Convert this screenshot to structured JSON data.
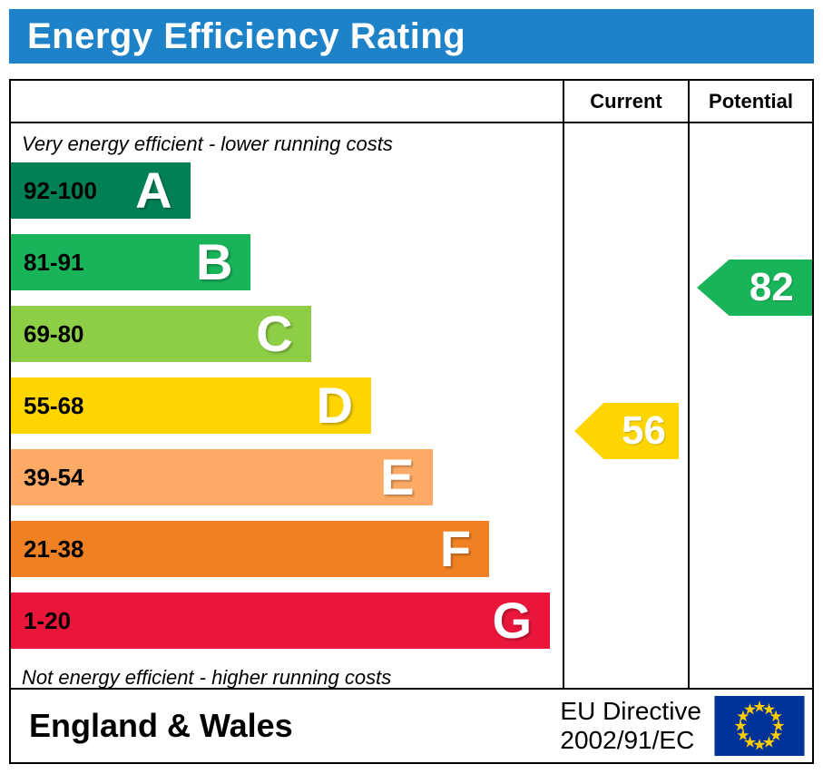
{
  "theme": {
    "banner_blue": "#1e82c8",
    "border_color": "#000000"
  },
  "header": {
    "title": "Energy Efficiency Rating"
  },
  "table": {
    "current_label": "Current",
    "potential_label": "Potential"
  },
  "chart_data": {
    "type": "bar",
    "title": "Energy Efficiency Rating",
    "top_note": "Very energy efficient - lower running costs",
    "bottom_note": "Not energy efficient - higher running costs",
    "categories": [
      "A",
      "B",
      "C",
      "D",
      "E",
      "F",
      "G"
    ],
    "bands": [
      {
        "letter": "A",
        "range": "92-100",
        "min": 92,
        "max": 100,
        "color": "#008054",
        "width_pct": 32.5
      },
      {
        "letter": "B",
        "range": "81-91",
        "min": 81,
        "max": 91,
        "color": "#19b459",
        "width_pct": 43.5
      },
      {
        "letter": "C",
        "range": "69-80",
        "min": 69,
        "max": 80,
        "color": "#8dce46",
        "width_pct": 54.4
      },
      {
        "letter": "D",
        "range": "55-68",
        "min": 55,
        "max": 68,
        "color": "#ffd500",
        "width_pct": 65.3
      },
      {
        "letter": "E",
        "range": "39-54",
        "min": 39,
        "max": 54,
        "color": "#fcaa65",
        "width_pct": 76.4
      },
      {
        "letter": "F",
        "range": "21-38",
        "min": 21,
        "max": 38,
        "color": "#ef8023",
        "width_pct": 86.7
      },
      {
        "letter": "G",
        "range": "1-20",
        "min": 1,
        "max": 20,
        "color": "#e9153b",
        "width_pct": 97.7
      }
    ],
    "current": {
      "value": "56",
      "band": "D",
      "color": "#ffd500"
    },
    "potential": {
      "value": "82",
      "band": "B",
      "color": "#19b459"
    }
  },
  "footer": {
    "region": "England & Wales",
    "directive_line1": "EU Directive",
    "directive_line2": "2002/91/EC",
    "eu_flag": {
      "background": "#003399",
      "star_color": "#ffcc00"
    }
  }
}
